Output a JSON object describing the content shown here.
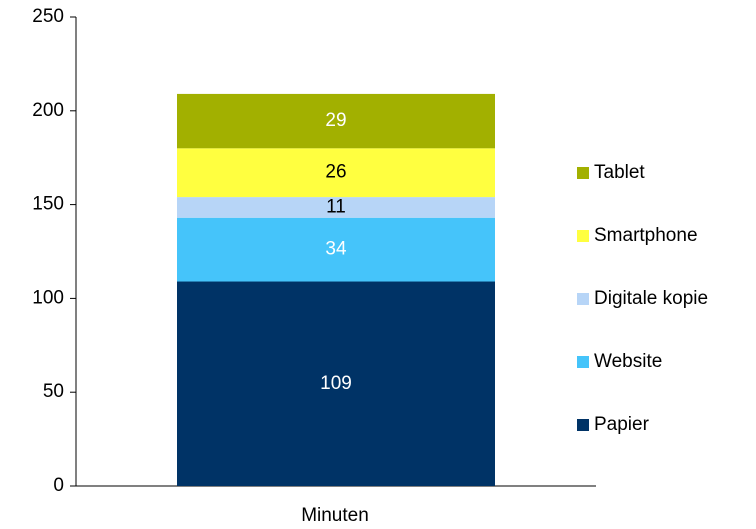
{
  "chart_data": {
    "type": "stacked_bar",
    "categories": [
      "Minuten"
    ],
    "series": [
      {
        "name": "Papier",
        "color": "#003366",
        "values": [
          109
        ]
      },
      {
        "name": "Website",
        "color": "#45c4fa",
        "values": [
          34
        ]
      },
      {
        "name": "Digitale kopie",
        "color": "#b7d5f7",
        "values": [
          11
        ]
      },
      {
        "name": "Smartphone",
        "color": "#ffff40",
        "values": [
          26
        ]
      },
      {
        "name": "Tablet",
        "color": "#a2b000",
        "values": [
          29
        ]
      }
    ],
    "ylim": [
      0,
      250
    ],
    "yticks": [
      0,
      50,
      100,
      150,
      200,
      250
    ],
    "grid": false,
    "legend": "right"
  }
}
